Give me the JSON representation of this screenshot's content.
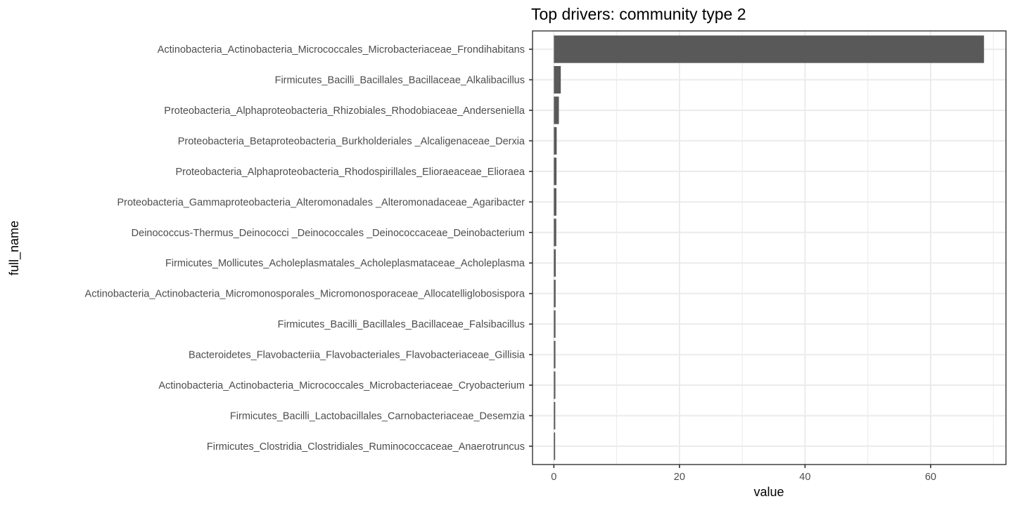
{
  "chart_data": {
    "type": "bar",
    "orientation": "horizontal",
    "title": "Top drivers: community type 2",
    "xlabel": "value",
    "ylabel": "full_name",
    "xlim": [
      -3.4,
      72.0
    ],
    "xticks": [
      0,
      20,
      40,
      60
    ],
    "grid": true,
    "categories": [
      "Actinobacteria_Actinobacteria_Micrococcales_Microbacteriaceae_Frondihabitans",
      "Firmicutes_Bacilli_Bacillales_Bacillaceae_Alkalibacillus",
      "Proteobacteria_Alphaproteobacteria_Rhizobiales_Rhodobiaceae_Anderseniella",
      "Proteobacteria_Betaproteobacteria_Burkholderiales _Alcaligenaceae_Derxia",
      "Proteobacteria_Alphaproteobacteria_Rhodospirillales_Elioraeaceae_Elioraea",
      "Proteobacteria_Gammaproteobacteria_Alteromonadales _Alteromonadaceae_Agaribacter",
      "Deinococcus-Thermus_Deinococci _Deinococcales _Deinococcaceae_Deinobacterium",
      "Firmicutes_Mollicutes_Acholeplasmatales_Acholeplasmataceae_Acholeplasma",
      "Actinobacteria_Actinobacteria_Micromonosporales_Micromonosporaceae_Allocatelliglobosispora",
      "Firmicutes_Bacilli_Bacillales_Bacillaceae_Falsibacillus",
      "Bacteroidetes_Flavobacteriia_Flavobacteriales_Flavobacteriaceae_Gillisia",
      "Actinobacteria_Actinobacteria_Micrococcales_Microbacteriaceae_Cryobacterium",
      "Firmicutes_Bacilli_Lactobacillales_Carnobacteriaceae_Desemzia",
      "Firmicutes_Clostridia_Clostridiales_Ruminococcaceae_Anaerotruncus"
    ],
    "values": [
      68.5,
      1.1,
      0.8,
      0.45,
      0.42,
      0.4,
      0.38,
      0.3,
      0.28,
      0.26,
      0.25,
      0.24,
      0.22,
      0.2
    ],
    "bar_color": "#595959"
  }
}
